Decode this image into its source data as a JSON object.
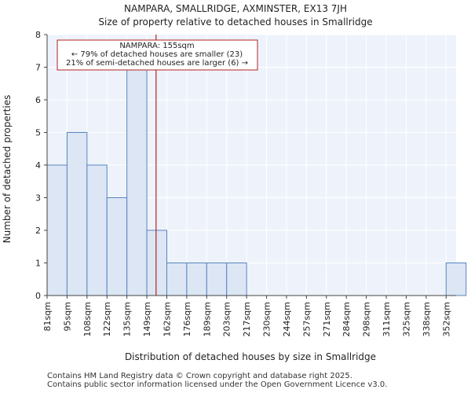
{
  "header": {
    "title_line1": "NAMPARA, SMALLRIDGE, AXMINSTER, EX13 7JH",
    "title_line2": "Size of property relative to detached houses in Smallridge"
  },
  "chart_data": {
    "type": "bar",
    "xlabel": "Distribution of detached houses by size in Smallridge",
    "ylabel": "Number of detached properties",
    "ylim": [
      0,
      8
    ],
    "yticks": [
      0,
      1,
      2,
      3,
      4,
      5,
      6,
      7,
      8
    ],
    "categories": [
      "81sqm",
      "95sqm",
      "108sqm",
      "122sqm",
      "135sqm",
      "149sqm",
      "162sqm",
      "176sqm",
      "189sqm",
      "203sqm",
      "217sqm",
      "230sqm",
      "244sqm",
      "257sqm",
      "271sqm",
      "284sqm",
      "298sqm",
      "311sqm",
      "325sqm",
      "338sqm",
      "352sqm"
    ],
    "values": [
      4,
      5,
      4,
      3,
      7,
      2,
      1,
      1,
      1,
      1,
      0,
      0,
      0,
      0,
      0,
      0,
      0,
      0,
      0,
      0,
      1
    ],
    "marker": {
      "value": 155,
      "label": "NAMPARA: 155sqm",
      "line2": "← 79% of detached houses are smaller (23)",
      "line3": "21% of semi-detached houses are larger (6) →"
    },
    "bar_color": "#dce6f4",
    "bar_edge": "#5a84c0",
    "marker_color": "#b22222",
    "plot_bg": "#eef3fb",
    "grid_color": "#ffffff"
  },
  "footer": {
    "line1": "Contains HM Land Registry data © Crown copyright and database right 2025.",
    "line2": "Contains public sector information licensed under the Open Government Licence v3.0."
  }
}
